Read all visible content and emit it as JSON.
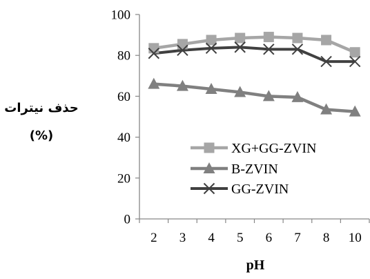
{
  "chart_data": {
    "type": "line",
    "x_type": "category",
    "categories": [
      "2",
      "3",
      "4",
      "5",
      "6",
      "7",
      "8",
      "10"
    ],
    "series": [
      {
        "name": "XG+GG-ZVIN",
        "values": [
          83.5,
          85.5,
          87.5,
          88.5,
          89,
          88.5,
          87.5,
          81.5
        ],
        "color": "#a6a6a6",
        "marker": "square"
      },
      {
        "name": "B-ZVIN",
        "values": [
          66,
          65,
          63.5,
          62,
          60,
          59.5,
          53.5,
          52.5
        ],
        "color": "#808080",
        "marker": "triangle"
      },
      {
        "name": "GG-ZVIN",
        "values": [
          81,
          82.5,
          83.5,
          84,
          83,
          83,
          77,
          77
        ],
        "color": "#404040",
        "marker": "x"
      }
    ],
    "ylabel_line1": "حذف نیترات",
    "ylabel_line2": "(%)",
    "xlabel": "pH",
    "ylim": [
      0,
      100
    ],
    "yticks": [
      "0",
      "20",
      "40",
      "60",
      "80",
      "100"
    ],
    "grid": false,
    "legend": "center-right"
  }
}
